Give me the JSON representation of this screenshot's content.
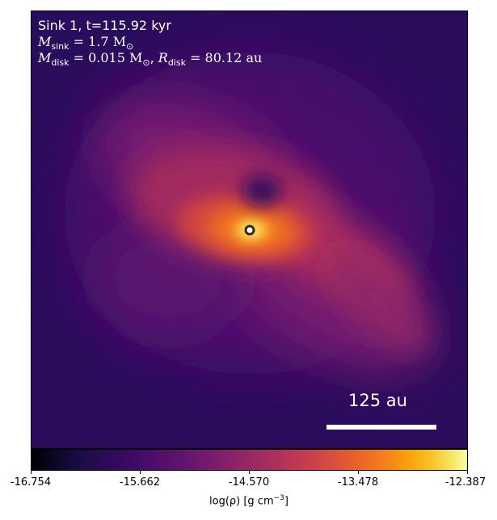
{
  "info": {
    "line1": "Sink 1, t=115.92 kyr",
    "m_sink_symbol": "M",
    "m_sink_sub": "sink",
    "m_sink_value": " = 1.7 M",
    "m_sun_sub": "⊙",
    "m_disk_symbol": "M",
    "m_disk_sub": "disk",
    "m_disk_value": " = 0.015 M",
    "m_disk_sun_sub": "⊙",
    "sep": ", ",
    "r_disk_symbol": "R",
    "r_disk_sub": "disk",
    "r_disk_value": " = 80.12 au"
  },
  "scale_bar": {
    "label": "125 au"
  },
  "colorbar": {
    "ticks": [
      "-16.754",
      "-15.662",
      "-14.570",
      "-13.478",
      "-12.387"
    ],
    "label_prefix": "log(ρ) [g cm",
    "label_exp": "−3",
    "label_suffix": "]"
  },
  "colors": {
    "background": "#2a0c5c",
    "sink_ring": "#2b2b2b"
  }
}
